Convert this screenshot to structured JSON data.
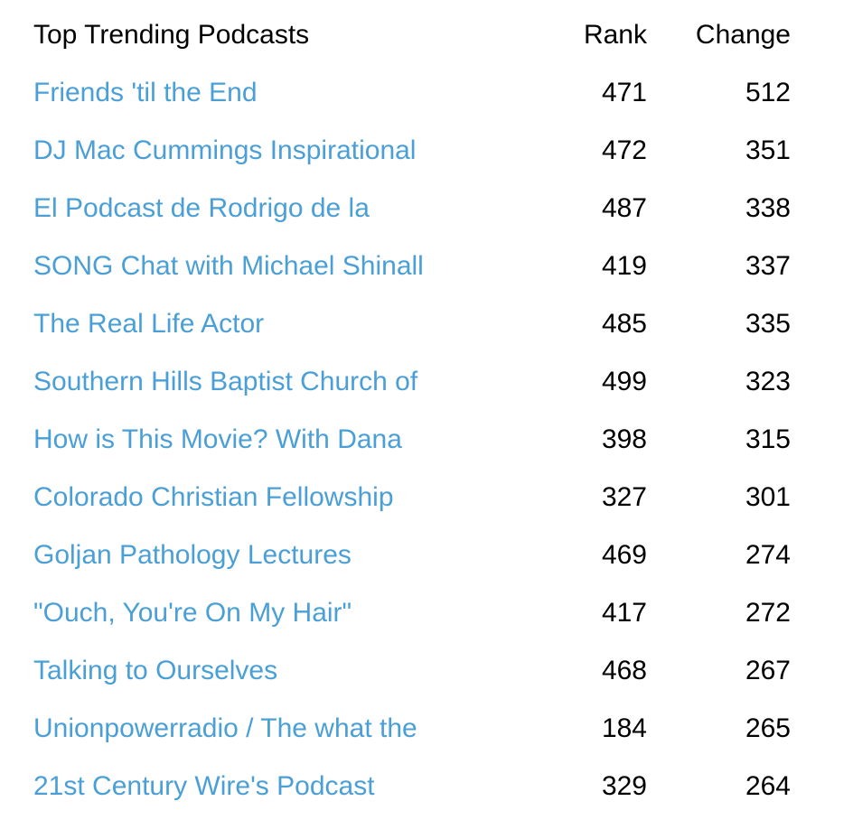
{
  "table": {
    "header": [
      "Top Trending Podcasts",
      "Rank",
      "Change"
    ],
    "rows": [
      [
        "Friends 'til the End",
        471,
        512
      ],
      [
        "DJ Mac Cummings Inspirational",
        472,
        351
      ],
      [
        "El Podcast de Rodrigo de la",
        487,
        338
      ],
      [
        "SONG Chat with Michael Shinall",
        419,
        337
      ],
      [
        "The Real Life Actor",
        485,
        335
      ],
      [
        "Southern Hills Baptist Church of",
        499,
        323
      ],
      [
        "How is This Movie? With Dana",
        398,
        315
      ],
      [
        "Colorado Christian Fellowship",
        327,
        301
      ],
      [
        "Goljan Pathology Lectures",
        469,
        274
      ],
      [
        "\"Ouch, You're On My Hair\"",
        417,
        272
      ],
      [
        "Talking to Ourselves",
        468,
        267
      ],
      [
        "Unionpowerradio / The what the",
        184,
        265
      ],
      [
        "21st Century Wire's Podcast",
        329,
        264
      ]
    ]
  }
}
